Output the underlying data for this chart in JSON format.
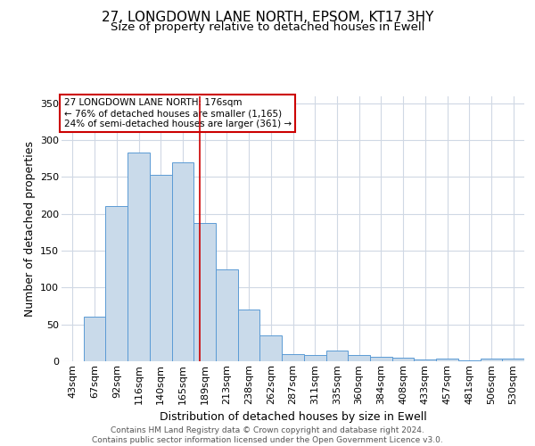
{
  "title": "27, LONGDOWN LANE NORTH, EPSOM, KT17 3HY",
  "subtitle": "Size of property relative to detached houses in Ewell",
  "xlabel": "Distribution of detached houses by size in Ewell",
  "ylabel": "Number of detached properties",
  "footer": "Contains HM Land Registry data © Crown copyright and database right 2024.\nContains public sector information licensed under the Open Government Licence v3.0.",
  "categories": [
    "43sqm",
    "67sqm",
    "92sqm",
    "116sqm",
    "140sqm",
    "165sqm",
    "189sqm",
    "213sqm",
    "238sqm",
    "262sqm",
    "287sqm",
    "311sqm",
    "335sqm",
    "360sqm",
    "384sqm",
    "408sqm",
    "433sqm",
    "457sqm",
    "481sqm",
    "506sqm",
    "530sqm"
  ],
  "values": [
    0,
    60,
    210,
    283,
    253,
    270,
    188,
    125,
    70,
    35,
    10,
    8,
    14,
    8,
    6,
    5,
    2,
    4,
    1,
    4,
    4
  ],
  "bar_color": "#c9daea",
  "bar_edge_color": "#5b9bd5",
  "vline_x": 5.77,
  "vline_color": "#cc0000",
  "annotation_text": "27 LONGDOWN LANE NORTH: 176sqm\n← 76% of detached houses are smaller (1,165)\n24% of semi-detached houses are larger (361) →",
  "annotation_box_color": "#ffffff",
  "annotation_box_edge": "#cc0000",
  "ylim": [
    0,
    360
  ],
  "yticks": [
    0,
    50,
    100,
    150,
    200,
    250,
    300,
    350
  ],
  "background_color": "#ffffff",
  "grid_color": "#d0d8e4",
  "title_fontsize": 11,
  "subtitle_fontsize": 9.5,
  "axis_label_fontsize": 9,
  "tick_fontsize": 8,
  "footer_fontsize": 6.5,
  "annotation_fontsize": 7.5
}
